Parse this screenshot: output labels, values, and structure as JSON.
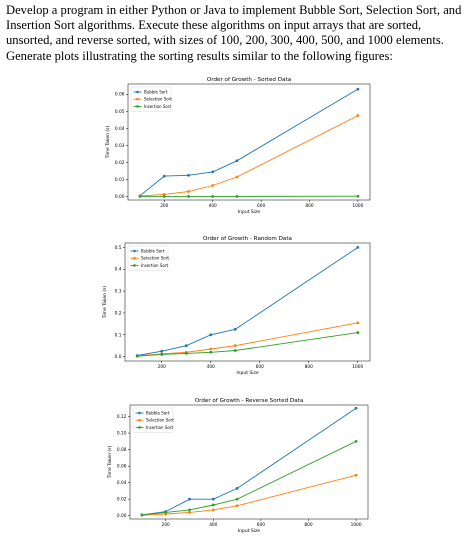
{
  "question": {
    "text": "Develop a program in either Python or Java to implement Bubble Sort, Selection Sort, and Insertion Sort algorithms. Execute these algorithms on input arrays that are sorted, unsorted, and reverse sorted, with sizes of 100, 200, 300, 400, 500, and 1000 elements. Generate plots illustrating the sorting results similar to the following figures:"
  },
  "colors": {
    "bubble": "#1f77b4",
    "selection": "#ff7f0e",
    "insertion": "#2ca02c"
  },
  "chart_data": [
    {
      "type": "line",
      "title": "Order of Growth - Sorted Data",
      "xlabel": "Input Size",
      "ylabel": "Time Taken (s)",
      "x": [
        100,
        200,
        300,
        400,
        500,
        1000
      ],
      "xlim": [
        50,
        1050
      ],
      "ylim": [
        -0.002,
        0.066
      ],
      "xticks": [
        200,
        400,
        600,
        800,
        1000
      ],
      "yticks": [
        0.0,
        0.01,
        0.02,
        0.03,
        0.04,
        0.05,
        0.06
      ],
      "ytick_labels": [
        "0.00",
        "0.01",
        "0.02",
        "0.03",
        "0.04",
        "0.05",
        "0.06"
      ],
      "legend": "top-left",
      "grid": false,
      "series": [
        {
          "name": "Bubble Sort",
          "color": "#1f77b4",
          "values": [
            0.0005,
            0.012,
            0.0125,
            0.0145,
            0.021,
            0.063
          ]
        },
        {
          "name": "Selection Sort",
          "color": "#ff7f0e",
          "values": [
            0.0004,
            0.0013,
            0.003,
            0.0065,
            0.0115,
            0.0475
          ]
        },
        {
          "name": "Insertion Sort",
          "color": "#2ca02c",
          "values": [
            0.0001,
            0.0001,
            0.0001,
            0.0001,
            0.0001,
            0.0002
          ]
        }
      ]
    },
    {
      "type": "line",
      "title": "Order of Growth - Random Data",
      "xlabel": "Input Size",
      "ylabel": "Time Taken (s)",
      "x": [
        100,
        200,
        300,
        400,
        500,
        1000
      ],
      "xlim": [
        50,
        1050
      ],
      "ylim": [
        -0.02,
        0.52
      ],
      "xticks": [
        200,
        400,
        600,
        800,
        1000
      ],
      "yticks": [
        0.0,
        0.1,
        0.2,
        0.3,
        0.4,
        0.5
      ],
      "ytick_labels": [
        "0.0",
        "0.1",
        "0.2",
        "0.3",
        "0.4",
        "0.5"
      ],
      "legend": "top-left",
      "grid": false,
      "series": [
        {
          "name": "Bubble Sort",
          "color": "#1f77b4",
          "values": [
            0.005,
            0.025,
            0.05,
            0.1,
            0.125,
            0.5
          ]
        },
        {
          "name": "Selection Sort",
          "color": "#ff7f0e",
          "values": [
            0.003,
            0.013,
            0.02,
            0.035,
            0.05,
            0.155
          ]
        },
        {
          "name": "Insertion Sort",
          "color": "#2ca02c",
          "values": [
            0.002,
            0.01,
            0.015,
            0.02,
            0.028,
            0.11
          ]
        }
      ]
    },
    {
      "type": "line",
      "title": "Order of Growth - Reverse Sorted Data",
      "xlabel": "Input Size",
      "ylabel": "Time Taken (s)",
      "x": [
        100,
        200,
        300,
        400,
        500,
        1000
      ],
      "xlim": [
        50,
        1050
      ],
      "ylim": [
        -0.004,
        0.134
      ],
      "xticks": [
        200,
        400,
        600,
        800,
        1000
      ],
      "yticks": [
        0.0,
        0.02,
        0.04,
        0.06,
        0.08,
        0.1,
        0.12
      ],
      "ytick_labels": [
        "0.00",
        "0.02",
        "0.04",
        "0.06",
        "0.08",
        "0.10",
        "0.12"
      ],
      "legend": "top-left",
      "grid": false,
      "series": [
        {
          "name": "Bubble Sort",
          "color": "#1f77b4",
          "values": [
            0.001,
            0.005,
            0.02,
            0.02,
            0.033,
            0.13
          ]
        },
        {
          "name": "Selection Sort",
          "color": "#ff7f0e",
          "values": [
            0.0005,
            0.002,
            0.004,
            0.007,
            0.012,
            0.049
          ]
        },
        {
          "name": "Insertion Sort",
          "color": "#2ca02c",
          "values": [
            0.001,
            0.004,
            0.007,
            0.013,
            0.02,
            0.09
          ]
        }
      ]
    }
  ]
}
